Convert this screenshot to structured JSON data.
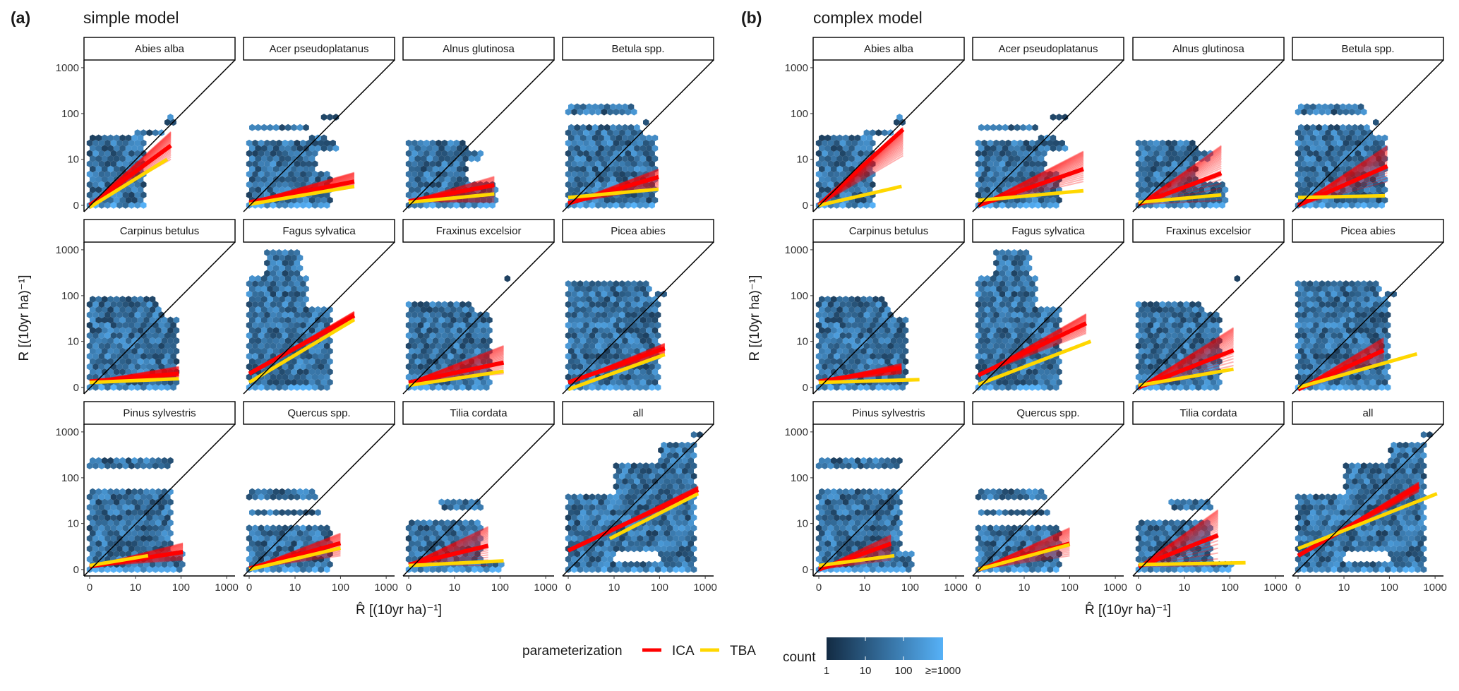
{
  "colors": {
    "ica": "#FF0000",
    "tba": "#FFD700",
    "count_low": "#132B43",
    "count_high": "#56B1F7",
    "identity_line": "#000000"
  },
  "legend": {
    "parameterization_title": "parameterization",
    "items": [
      {
        "label": "ICA",
        "color": "#FF0000"
      },
      {
        "label": "TBA",
        "color": "#FFD700"
      }
    ],
    "count_title": "count",
    "count_ticks": [
      "1",
      "10",
      "100",
      "≥=1000"
    ]
  },
  "hex_regions": {
    "Abies alba": [
      {
        "x": [
          0,
          17
        ],
        "y": [
          0,
          30
        ]
      },
      {
        "x": [
          10,
          50
        ],
        "y": [
          30,
          45
        ]
      },
      {
        "x": [
          50,
          75
        ],
        "y": [
          60,
          90
        ]
      }
    ],
    "Acer pseudoplatanus": [
      {
        "x": [
          0,
          60
        ],
        "y": [
          0,
          5
        ]
      },
      {
        "x": [
          0,
          30
        ],
        "y": [
          5,
          15
        ]
      },
      {
        "x": [
          0,
          80
        ],
        "y": [
          15,
          25
        ]
      },
      {
        "x": [
          20,
          50
        ],
        "y": [
          25,
          30
        ]
      },
      {
        "x": [
          0,
          20
        ],
        "y": [
          40,
          56
        ]
      },
      {
        "x": [
          40,
          80
        ],
        "y": [
          75,
          85
        ]
      }
    ],
    "Alnus glutinosa": [
      {
        "x": [
          0,
          20
        ],
        "y": [
          0,
          25
        ]
      },
      {
        "x": [
          20,
          90
        ],
        "y": [
          0,
          3
        ]
      },
      {
        "x": [
          20,
          40
        ],
        "y": [
          10,
          15
        ]
      },
      {
        "x": [
          0,
          20
        ],
        "y": [
          110,
          130
        ]
      }
    ],
    "Betula spp.": [
      {
        "x": [
          0,
          80
        ],
        "y": [
          0,
          30
        ]
      },
      {
        "x": [
          0,
          40
        ],
        "y": [
          30,
          50
        ]
      },
      {
        "x": [
          40,
          60
        ],
        "y": [
          55,
          70
        ]
      },
      {
        "x": [
          0,
          30
        ],
        "y": [
          90,
          150
        ]
      }
    ],
    "Carpinus betulus": [
      {
        "x": [
          0,
          80
        ],
        "y": [
          0,
          30
        ]
      },
      {
        "x": [
          0,
          40
        ],
        "y": [
          30,
          50
        ]
      },
      {
        "x": [
          0,
          30
        ],
        "y": [
          60,
          85
        ]
      }
    ],
    "Fagus sylvatica": [
      {
        "x": [
          0,
          60
        ],
        "y": [
          0,
          60
        ]
      },
      {
        "x": [
          0,
          20
        ],
        "y": [
          60,
          300
        ]
      },
      {
        "x": [
          2,
          15
        ],
        "y": [
          300,
          1000
        ]
      },
      {
        "x": [
          80,
          90
        ],
        "y": [
          60,
          70
        ]
      }
    ],
    "Fraxinus excelsior": [
      {
        "x": [
          0,
          60
        ],
        "y": [
          0,
          40
        ]
      },
      {
        "x": [
          0,
          25
        ],
        "y": [
          40,
          70
        ]
      },
      {
        "x": [
          130,
          150
        ],
        "y": [
          220,
          280
        ]
      }
    ],
    "Picea abies": [
      {
        "x": [
          0,
          100
        ],
        "y": [
          0,
          100
        ]
      },
      {
        "x": [
          0,
          60
        ],
        "y": [
          100,
          220
        ]
      },
      {
        "x": [
          80,
          150
        ],
        "y": [
          100,
          130
        ]
      }
    ],
    "Pinus sylvestris": [
      {
        "x": [
          0,
          60
        ],
        "y": [
          0,
          60
        ]
      },
      {
        "x": [
          0,
          60
        ],
        "y": [
          180,
          260
        ]
      },
      {
        "x": [
          60,
          120
        ],
        "y": [
          0,
          2
        ]
      }
    ],
    "Quercus spp.": [
      {
        "x": [
          0,
          60
        ],
        "y": [
          0,
          10
        ]
      },
      {
        "x": [
          0,
          40
        ],
        "y": [
          15,
          18
        ]
      },
      {
        "x": [
          0,
          30
        ],
        "y": [
          35,
          60
        ]
      },
      {
        "x": [
          0,
          60
        ],
        "y": [
          190,
          220
        ]
      }
    ],
    "Tilia cordata": [
      {
        "x": [
          0,
          40
        ],
        "y": [
          0,
          12
        ]
      },
      {
        "x": [
          5,
          40
        ],
        "y": [
          20,
          30
        ]
      },
      {
        "x": [
          40,
          120
        ],
        "y": [
          0,
          1
        ]
      }
    ],
    "all": [
      {
        "x": [
          0,
          10
        ],
        "y": [
          0,
          40
        ]
      },
      {
        "x": [
          10,
          100
        ],
        "y": [
          2,
          200
        ]
      },
      {
        "x": [
          100,
          600
        ],
        "y": [
          0,
          600
        ]
      },
      {
        "x": [
          500,
          1000
        ],
        "y": [
          800,
          1000
        ]
      },
      {
        "x": [
          0,
          300
        ],
        "y": [
          0,
          0.8
        ]
      }
    ]
  },
  "chart_data": [
    {
      "type": "hexbin",
      "tag": "(a)",
      "title": "simple model",
      "xlabel": "R̂ [(10yr ha)⁻¹]",
      "ylabel": "R [(10yr ha)⁻¹]",
      "scale": "pseudo-log",
      "x_ticks": [
        "0",
        "10",
        "100",
        "1000"
      ],
      "y_ticks": [
        "0",
        "10",
        "100",
        "1000"
      ],
      "xlim": [
        0,
        1000
      ],
      "ylim": [
        0,
        1000
      ],
      "identity_line": true,
      "facets": [
        {
          "name": "Abies alba",
          "ica": {
            "x": [
              0,
              60
            ],
            "y": [
              0,
              20
            ],
            "y_end_range": [
              10,
              40
            ]
          },
          "tba": {
            "x": [
              0,
              50
            ],
            "y": [
              -0.2,
              10
            ]
          }
        },
        {
          "name": "Acer pseudoplatanus",
          "ica": {
            "x": [
              0,
              200
            ],
            "y": [
              0.3,
              3
            ],
            "y_end_range": [
              2,
              5
            ]
          },
          "tba": {
            "x": [
              0,
              200
            ],
            "y": [
              0.1,
              2.2
            ]
          }
        },
        {
          "name": "Alnus glutinosa",
          "ica": {
            "x": [
              0,
              75
            ],
            "y": [
              0.4,
              2.4
            ],
            "y_end_range": [
              0.3,
              4
            ]
          },
          "tba": {
            "x": [
              0,
              75
            ],
            "y": [
              0.3,
              1.2
            ]
          }
        },
        {
          "name": "Betula spp.",
          "ica": {
            "x": [
              0,
              95
            ],
            "y": [
              0.2,
              3.9
            ],
            "y_end_range": [
              2,
              6
            ]
          },
          "tba": {
            "x": [
              0,
              95
            ],
            "y": [
              0.8,
              1.8
            ]
          }
        },
        {
          "name": "Carpinus betulus",
          "ica": {
            "x": [
              0,
              90
            ],
            "y": [
              0.6,
              1.5
            ],
            "y_end_range": [
              1,
              2.5
            ]
          },
          "tba": {
            "x": [
              0,
              90
            ],
            "y": [
              0.5,
              0.9
            ]
          }
        },
        {
          "name": "Fagus sylvatica",
          "ica": {
            "x": [
              0,
              200
            ],
            "y": [
              1.5,
              37
            ],
            "y_end_range": [
              30,
              45
            ]
          },
          "tba": {
            "x": [
              0,
              200
            ],
            "y": [
              0.5,
              30
            ]
          }
        },
        {
          "name": "Fraxinus excelsior",
          "ica": {
            "x": [
              0,
              120
            ],
            "y": [
              0.5,
              3.2
            ],
            "y_end_range": [
              1.5,
              8
            ]
          },
          "tba": {
            "x": [
              0,
              120
            ],
            "y": [
              0.2,
              1.8
            ]
          }
        },
        {
          "name": "Picea abies",
          "ica": {
            "x": [
              0,
              130
            ],
            "y": [
              0.5,
              7
            ],
            "y_end_range": [
              5,
              9
            ]
          },
          "tba": {
            "x": [
              0,
              130
            ],
            "y": [
              -0.2,
              5
            ]
          }
        },
        {
          "name": "Pinus sylvestris",
          "ica": {
            "x": [
              0,
              110
            ],
            "y": [
              0.3,
              2
            ],
            "y_end_range": [
              1,
              3.5
            ]
          },
          "tba": {
            "x": [
              0,
              19
            ],
            "y": [
              0.4,
              1.5
            ]
          }
        },
        {
          "name": "Quercus spp.",
          "ica": {
            "x": [
              0,
              100
            ],
            "y": [
              0.1,
              3.5
            ],
            "y_end_range": [
              1.5,
              6
            ]
          },
          "tba": {
            "x": [
              0,
              100
            ],
            "y": [
              0,
              2.6
            ]
          }
        },
        {
          "name": "Tilia cordata",
          "ica": {
            "x": [
              0,
              55
            ],
            "y": [
              0.5,
              3
            ],
            "y_end_range": [
              0.4,
              8.5
            ]
          },
          "tba": {
            "x": [
              0,
              120
            ],
            "y": [
              0.4,
              0.9
            ]
          }
        },
        {
          "name": "all",
          "ica": {
            "x": [
              0,
              700
            ],
            "y": [
              2.2,
              55
            ],
            "y_end_range": [
              45,
              65
            ]
          },
          "tba": {
            "x": [
              8,
              700
            ],
            "y": [
              4.5,
              45
            ]
          }
        }
      ]
    },
    {
      "type": "hexbin",
      "tag": "(b)",
      "title": "complex model",
      "xlabel": "R̂ [(10yr ha)⁻¹]",
      "ylabel": "R [(10yr ha)⁻¹]",
      "scale": "pseudo-log",
      "x_ticks": [
        "0",
        "10",
        "100",
        "1000"
      ],
      "y_ticks": [
        "0",
        "10",
        "100",
        "1000"
      ],
      "xlim": [
        0,
        1000
      ],
      "ylim": [
        0,
        1000
      ],
      "identity_line": true,
      "facets": [
        {
          "name": "Abies alba",
          "ica": {
            "x": [
              0,
              70
            ],
            "y": [
              0,
              45
            ],
            "y_end_range": [
              12,
              50
            ]
          },
          "tba": {
            "x": [
              0,
              65
            ],
            "y": [
              0,
              2.2
            ]
          }
        },
        {
          "name": "Acer pseudoplatanus",
          "ica": {
            "x": [
              0,
              200
            ],
            "y": [
              0,
              6
            ],
            "y_end_range": [
              3,
              15
            ]
          },
          "tba": {
            "x": [
              0,
              200
            ],
            "y": [
              0.5,
              1.6
            ]
          }
        },
        {
          "name": "Alnus glutinosa",
          "ica": {
            "x": [
              0,
              65
            ],
            "y": [
              0.1,
              4.8
            ],
            "y_end_range": [
              0.5,
              20
            ]
          },
          "tba": {
            "x": [
              0,
              65
            ],
            "y": [
              0.3,
              1.1
            ]
          }
        },
        {
          "name": "Betula spp.",
          "ica": {
            "x": [
              0,
              90
            ],
            "y": [
              0,
              7
            ],
            "y_end_range": [
              3,
              20
            ]
          },
          "tba": {
            "x": [
              0,
              80
            ],
            "y": [
              0.8,
              1.0
            ]
          }
        },
        {
          "name": "Carpinus betulus",
          "ica": {
            "x": [
              0,
              65
            ],
            "y": [
              0.6,
              2.3
            ],
            "y_end_range": [
              1.5,
              3
            ]
          },
          "tba": {
            "x": [
              0,
              160
            ],
            "y": [
              0.5,
              0.8
            ]
          }
        },
        {
          "name": "Fagus sylvatica",
          "ica": {
            "x": [
              0,
              230
            ],
            "y": [
              1.3,
              25
            ],
            "y_end_range": [
              15,
              40
            ]
          },
          "tba": {
            "x": [
              0,
              290
            ],
            "y": [
              0.3,
              10
            ]
          }
        },
        {
          "name": "Fraxinus excelsior",
          "ica": {
            "x": [
              0,
              120
            ],
            "y": [
              0,
              6.3
            ],
            "y_end_range": [
              2,
              20
            ]
          },
          "tba": {
            "x": [
              0,
              120
            ],
            "y": [
              0.2,
              2.1
            ]
          }
        },
        {
          "name": "Picea abies",
          "ica": {
            "x": [
              0,
              75
            ],
            "y": [
              -0.2,
              6.3
            ],
            "y_end_range": [
              3,
              12
            ]
          },
          "tba": {
            "x": [
              0,
              400
            ],
            "y": [
              0,
              5.2
            ]
          }
        },
        {
          "name": "Pinus sylvestris",
          "ica": {
            "x": [
              0,
              38
            ],
            "y": [
              0,
              3.4
            ],
            "y_end_range": [
              1,
              5.5
            ]
          },
          "tba": {
            "x": [
              0,
              45
            ],
            "y": [
              0.4,
              1.5
            ]
          }
        },
        {
          "name": "Quercus spp.",
          "ica": {
            "x": [
              0,
              100
            ],
            "y": [
              0,
              3.4
            ],
            "y_end_range": [
              1.5,
              8
            ]
          },
          "tba": {
            "x": [
              0,
              100
            ],
            "y": [
              0,
              3.2
            ]
          }
        },
        {
          "name": "Tilia cordata",
          "ica": {
            "x": [
              0,
              55
            ],
            "y": [
              0.3,
              5.4
            ],
            "y_end_range": [
              0.4,
              20
            ]
          },
          "tba": {
            "x": [
              0,
              220
            ],
            "y": [
              0.5,
              0.7
            ]
          }
        },
        {
          "name": "all",
          "ica": {
            "x": [
              0,
              440
            ],
            "y": [
              1.5,
              65
            ],
            "y_end_range": [
              50,
              80
            ]
          },
          "tba": {
            "x": [
              0,
              1100
            ],
            "y": [
              2.5,
              45
            ]
          }
        }
      ]
    }
  ]
}
